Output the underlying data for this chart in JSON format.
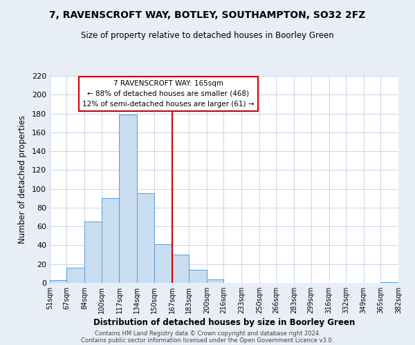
{
  "title": "7, RAVENSCROFT WAY, BOTLEY, SOUTHAMPTON, SO32 2FZ",
  "subtitle": "Size of property relative to detached houses in Boorley Green",
  "xlabel": "Distribution of detached houses by size in Boorley Green",
  "ylabel": "Number of detached properties",
  "bin_edges": [
    51,
    67,
    84,
    100,
    117,
    134,
    150,
    167,
    183,
    200,
    216,
    233,
    250,
    266,
    283,
    299,
    316,
    332,
    349,
    365,
    382
  ],
  "bar_heights": [
    3,
    16,
    65,
    90,
    179,
    95,
    41,
    30,
    14,
    4,
    0,
    0,
    0,
    0,
    0,
    0,
    0,
    0,
    0,
    1
  ],
  "bar_color": "#c9ddf0",
  "bar_edge_color": "#5b9bd5",
  "vline_x": 167,
  "vline_color": "#cc0000",
  "annotation_title": "7 RAVENSCROFT WAY: 165sqm",
  "annotation_line1": "← 88% of detached houses are smaller (468)",
  "annotation_line2": "12% of semi-detached houses are larger (61) →",
  "annotation_box_color": "#ffffff",
  "annotation_box_edge_color": "#cc0000",
  "ylim": [
    0,
    220
  ],
  "yticks": [
    0,
    20,
    40,
    60,
    80,
    100,
    120,
    140,
    160,
    180,
    200,
    220
  ],
  "tick_labels": [
    "51sqm",
    "67sqm",
    "84sqm",
    "100sqm",
    "117sqm",
    "134sqm",
    "150sqm",
    "167sqm",
    "183sqm",
    "200sqm",
    "216sqm",
    "233sqm",
    "250sqm",
    "266sqm",
    "283sqm",
    "299sqm",
    "316sqm",
    "332sqm",
    "349sqm",
    "365sqm",
    "382sqm"
  ],
  "footer1": "Contains HM Land Registry data © Crown copyright and database right 2024.",
  "footer2": "Contains public sector information licensed under the Open Government Licence v3.0.",
  "bg_color": "#e8eef6",
  "plot_bg_color": "#ffffff"
}
